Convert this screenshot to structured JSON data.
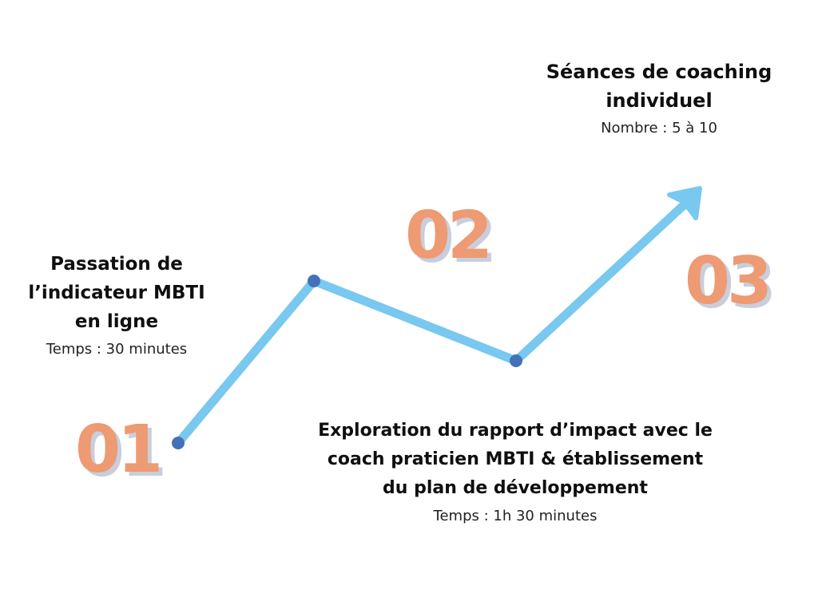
{
  "steps": [
    {
      "number": "01",
      "title_lines": [
        "Passation de",
        "l’indicateur MBTI",
        "en ligne"
      ],
      "detail": "Temps : 30 minutes"
    },
    {
      "number": "02",
      "title_lines": [
        "Exploration du rapport d’impact avec le",
        "coach praticien MBTI & établissement",
        "du plan de développement"
      ],
      "detail": "Temps : 1h 30 minutes"
    },
    {
      "number": "03",
      "title_lines": [
        "Séances de coaching",
        "individuel"
      ],
      "detail": "Nombre : 5 à 10"
    }
  ],
  "colors": {
    "number": "#ee9a72",
    "number_shadow": "#c9cedc",
    "path": "#78c8ef",
    "node": "#4472b8",
    "text": "#0f0f0f"
  }
}
